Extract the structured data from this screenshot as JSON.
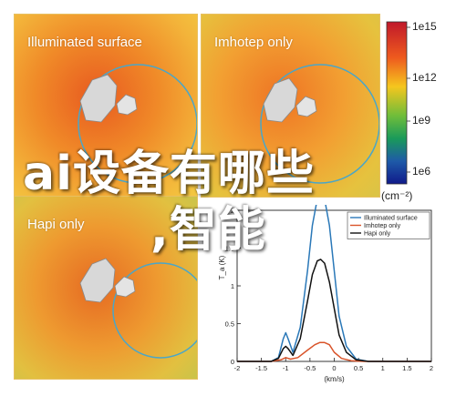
{
  "panels": [
    {
      "title": "Illuminated surface"
    },
    {
      "title": "Imhotep only"
    },
    {
      "title": "Hapi only"
    }
  ],
  "colorbar": {
    "tick_labels": [
      "1e15",
      "1e12",
      "1e9",
      "1e6"
    ],
    "unit": "(cm⁻²)",
    "colors": [
      "#c0182a",
      "#ee5a1e",
      "#f5c61e",
      "#6fbd3a",
      "#1a9a5a",
      "#1e5aa8",
      "#101a8a"
    ]
  },
  "overlay": {
    "line1": "ai设备有哪些",
    "line2": ",智能"
  },
  "chart_data": {
    "type": "line",
    "title": "",
    "xlabel": "(km/s)",
    "ylabel": "T_a (K)",
    "xlim": [
      -2,
      2
    ],
    "ylim": [
      0,
      2
    ],
    "x_ticks": [
      "-2",
      "-1.5",
      "-1",
      "-0.5",
      "0",
      "0.5",
      "1",
      "1.5",
      "2"
    ],
    "y_ticks": [
      "0",
      "0.5",
      "1",
      "1.5",
      "2"
    ],
    "legend_position": "top-right",
    "grid": false,
    "series": [
      {
        "name": "Illuminated surface",
        "color": "#2a78b8",
        "x": [
          -2,
          -1.3,
          -1.15,
          -1.05,
          -1.0,
          -0.95,
          -0.85,
          -0.7,
          -0.55,
          -0.45,
          -0.35,
          -0.28,
          -0.2,
          -0.1,
          0.0,
          0.1,
          0.25,
          0.45,
          0.7,
          1.2,
          2
        ],
        "y": [
          0,
          0,
          0.05,
          0.3,
          0.38,
          0.3,
          0.12,
          0.45,
          1.2,
          1.8,
          2.15,
          2.2,
          2.15,
          1.8,
          1.2,
          0.6,
          0.2,
          0.03,
          0,
          0,
          0
        ]
      },
      {
        "name": "Imhotep only",
        "color": "#d9542a",
        "x": [
          -2,
          -1.3,
          -1.1,
          -1.0,
          -0.9,
          -0.75,
          -0.55,
          -0.4,
          -0.3,
          -0.2,
          -0.1,
          0.0,
          0.15,
          0.35,
          0.6,
          1.2,
          2
        ],
        "y": [
          0,
          0,
          0.02,
          0.05,
          0.03,
          0.05,
          0.15,
          0.22,
          0.25,
          0.25,
          0.22,
          0.12,
          0.04,
          0.01,
          0,
          0,
          0
        ]
      },
      {
        "name": "Hapi only",
        "color": "#111111",
        "x": [
          -2,
          -1.3,
          -1.15,
          -1.05,
          -1.0,
          -0.95,
          -0.85,
          -0.7,
          -0.55,
          -0.45,
          -0.35,
          -0.28,
          -0.2,
          -0.1,
          0.0,
          0.1,
          0.25,
          0.45,
          0.7,
          1.2,
          2
        ],
        "y": [
          0,
          0,
          0.04,
          0.17,
          0.2,
          0.17,
          0.08,
          0.3,
          0.8,
          1.15,
          1.33,
          1.35,
          1.3,
          1.05,
          0.7,
          0.35,
          0.12,
          0.02,
          0,
          0,
          0
        ]
      }
    ]
  }
}
